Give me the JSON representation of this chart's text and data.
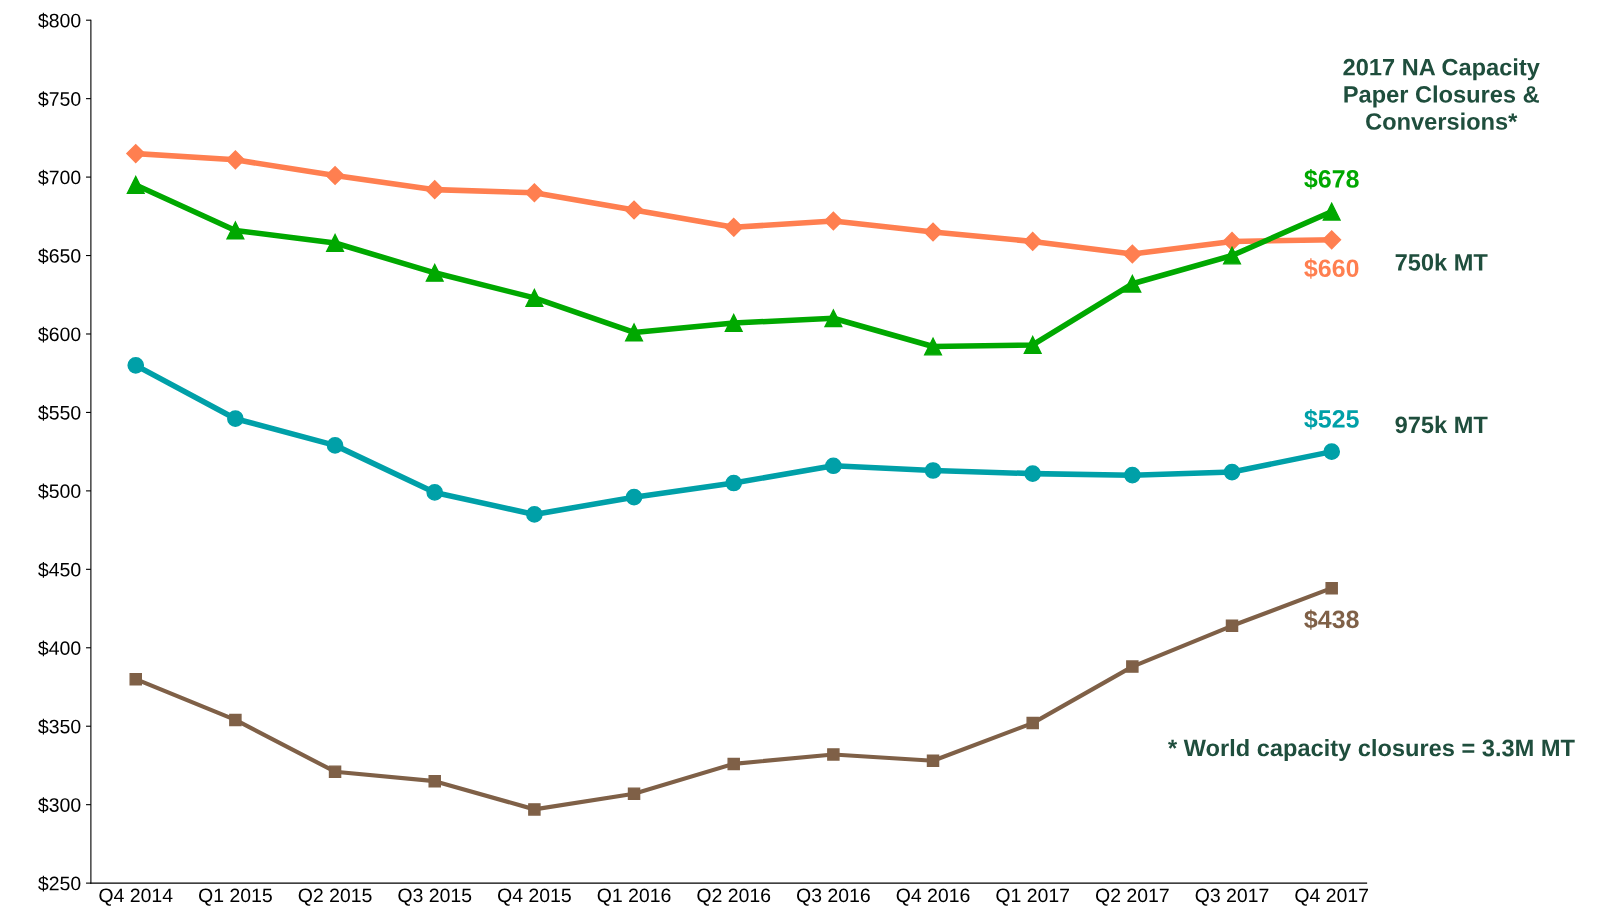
{
  "chart_data": {
    "type": "line",
    "categories": [
      "Q4 2014",
      "Q1 2015",
      "Q2 2015",
      "Q3 2015",
      "Q4 2015",
      "Q1 2016",
      "Q2 2016",
      "Q3 2016",
      "Q4 2016",
      "Q1 2017",
      "Q2 2017",
      "Q3 2017",
      "Q4 2017"
    ],
    "series": [
      {
        "color": "#ff7f50",
        "marker": "diamond",
        "values": [
          715,
          711,
          701,
          692,
          690,
          679,
          668,
          672,
          665,
          659,
          651,
          659,
          660
        ],
        "value_labels": [
          null,
          null,
          null,
          null,
          null,
          null,
          null,
          null,
          null,
          null,
          null,
          null,
          "$660"
        ]
      },
      {
        "color": "#00a800",
        "marker": "triangle",
        "values": [
          695,
          666,
          658,
          639,
          623,
          601,
          607,
          610,
          592,
          593,
          632,
          650,
          678
        ],
        "value_labels": [
          null,
          null,
          null,
          null,
          null,
          null,
          null,
          null,
          null,
          null,
          null,
          null,
          "$678"
        ]
      },
      {
        "color": "#00a0a8",
        "marker": "circle",
        "values": [
          580,
          546,
          529,
          499,
          485,
          496,
          505,
          516,
          513,
          511,
          510,
          512,
          525
        ],
        "value_labels": [
          null,
          null,
          null,
          null,
          null,
          null,
          null,
          null,
          null,
          null,
          null,
          null,
          "$525"
        ]
      },
      {
        "color": "#7f6047",
        "marker": "square",
        "values": [
          380,
          354,
          321,
          315,
          297,
          307,
          326,
          332,
          328,
          352,
          388,
          414,
          438
        ],
        "value_labels": [
          null,
          null,
          null,
          null,
          null,
          null,
          null,
          null,
          null,
          null,
          null,
          null,
          "$438"
        ]
      }
    ],
    "ylim": [
      250,
      800
    ],
    "yticks": [
      {
        "value": 250,
        "label": "$250"
      },
      {
        "value": 300,
        "label": "$300"
      },
      {
        "value": 350,
        "label": "$350"
      },
      {
        "value": 400,
        "label": "$400"
      },
      {
        "value": 450,
        "label": "$450"
      },
      {
        "value": 500,
        "label": "$500"
      },
      {
        "value": 550,
        "label": "$550"
      },
      {
        "value": 600,
        "label": "$600"
      },
      {
        "value": 650,
        "label": "$650"
      },
      {
        "value": 700,
        "label": "$700"
      },
      {
        "value": 750,
        "label": "$750"
      },
      {
        "value": 800,
        "label": "$800"
      }
    ],
    "annotations": [
      "2017 NA Capacity\nPaper Closures &\nConversions*",
      "750k MT",
      "975k MT",
      "* World capacity closures = 3.3M MT"
    ],
    "grid": false,
    "legend": false
  }
}
